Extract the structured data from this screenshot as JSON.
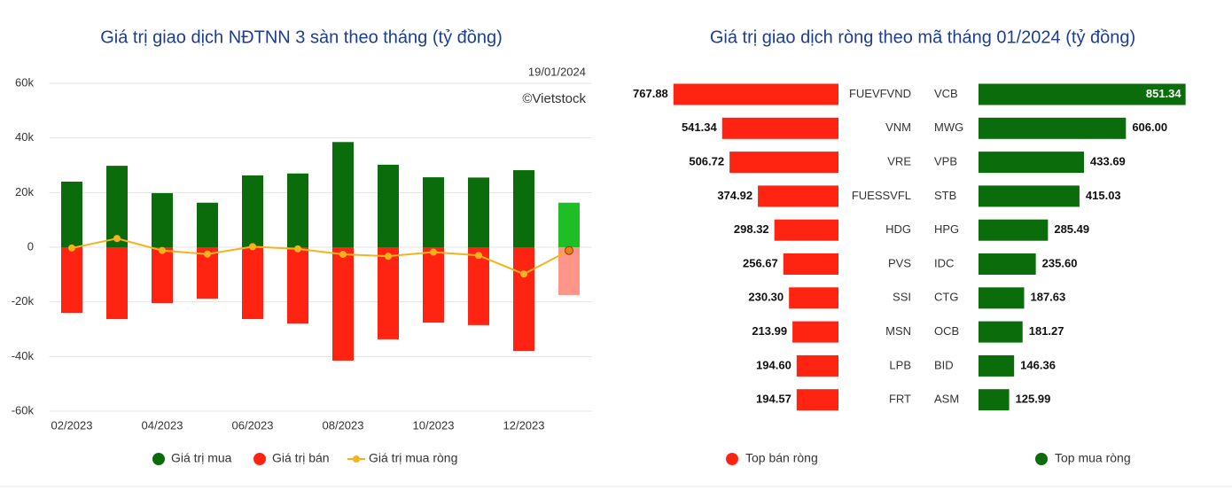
{
  "chart_data": [
    {
      "type": "bar_line",
      "title": "Giá trị giao dịch NĐTNN 3 sàn theo tháng (tỷ đồng)",
      "annotations": [
        "19/01/2024",
        "©Vietstock"
      ],
      "categories": [
        "02/2023",
        null,
        "04/2023",
        null,
        "06/2023",
        null,
        "08/2023",
        null,
        "10/2023",
        null,
        "12/2023",
        null
      ],
      "series": [
        {
          "name": "Giá trị mua",
          "kind": "bar",
          "color": "#0b6c0b",
          "last_color": "#1dbf24",
          "values": [
            24000,
            29800,
            19800,
            16300,
            26300,
            27000,
            38500,
            30200,
            25600,
            25500,
            28200,
            16300
          ]
        },
        {
          "name": "Giá trị bán",
          "kind": "bar",
          "color": "#ff2412",
          "last_color": "#ff9489",
          "values": [
            -24000,
            -26300,
            -20500,
            -18800,
            -26300,
            -27900,
            -41500,
            -33700,
            -27600,
            -28500,
            -38000,
            -17500
          ]
        },
        {
          "name": "Giá trị mua ròng",
          "kind": "line",
          "color": "#f5b21b",
          "values": [
            -300,
            3200,
            -1200,
            -2500,
            200,
            -600,
            -2600,
            -3300,
            -1800,
            -3000,
            -9800,
            -1200
          ]
        }
      ],
      "ylim": [
        -60000,
        60000
      ],
      "yticks": [
        {
          "value": -60000,
          "label": "-60k"
        },
        {
          "value": -40000,
          "label": "-40k"
        },
        {
          "value": -20000,
          "label": "-20k"
        },
        0,
        {
          "value": 20000,
          "label": "20k"
        },
        {
          "value": 40000,
          "label": "40k"
        },
        {
          "value": 60000,
          "label": "60k"
        }
      ],
      "grid": true
    },
    {
      "type": "diverging_hbar",
      "title": "Giá trị giao dịch ròng theo mã tháng 01/2024 (tỷ đồng)",
      "series": [
        {
          "name": "Top bán ròng",
          "color": "#ff2412",
          "xlim": [
            0,
            800
          ],
          "categories": [
            "FUEVFVND",
            "VNM",
            "VRE",
            "FUESSVFL",
            "HDG",
            "PVS",
            "SSI",
            "MSN",
            "LPB",
            "FRT"
          ],
          "values": [
            767.88,
            541.34,
            506.72,
            374.92,
            298.32,
            256.67,
            230.3,
            213.99,
            194.6,
            194.57
          ],
          "value_labels": [
            "767.88",
            "541.34",
            "506.72",
            "374.92",
            "298.32",
            "256.67",
            "230.30",
            "213.99",
            "194.60",
            "194.57"
          ]
        },
        {
          "name": "Top mua ròng",
          "color": "#0b6c0b",
          "xlim": [
            0,
            900
          ],
          "categories": [
            "VCB",
            "MWG",
            "VPB",
            "STB",
            "HPG",
            "IDC",
            "CTG",
            "OCB",
            "BID",
            "ASM"
          ],
          "values": [
            851.34,
            606,
            433.69,
            415.03,
            285.49,
            235.6,
            187.63,
            181.27,
            146.36,
            125.99
          ],
          "value_labels": [
            "851.34",
            "606.00",
            "433.69",
            "415.03",
            "285.49",
            "235.60",
            "187.63",
            "181.27",
            "146.36",
            "125.99"
          ]
        }
      ]
    }
  ]
}
